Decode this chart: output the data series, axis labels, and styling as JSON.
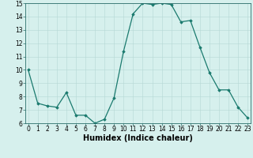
{
  "x": [
    0,
    1,
    2,
    3,
    4,
    5,
    6,
    7,
    8,
    9,
    10,
    11,
    12,
    13,
    14,
    15,
    16,
    17,
    18,
    19,
    20,
    21,
    22,
    23
  ],
  "y": [
    10,
    7.5,
    7.3,
    7.2,
    8.3,
    6.6,
    6.6,
    6.0,
    6.3,
    7.9,
    11.4,
    14.2,
    15.0,
    14.9,
    15.0,
    14.9,
    13.6,
    13.7,
    11.7,
    9.8,
    8.5,
    8.5,
    7.2,
    6.4
  ],
  "xlabel": "Humidex (Indice chaleur)",
  "ylim": [
    6,
    15
  ],
  "xlim": [
    -0.3,
    23.3
  ],
  "yticks": [
    6,
    7,
    8,
    9,
    10,
    11,
    12,
    13,
    14,
    15
  ],
  "xticks": [
    0,
    1,
    2,
    3,
    4,
    5,
    6,
    7,
    8,
    9,
    10,
    11,
    12,
    13,
    14,
    15,
    16,
    17,
    18,
    19,
    20,
    21,
    22,
    23
  ],
  "line_color": "#1a7a6e",
  "marker": "D",
  "marker_size": 1.8,
  "bg_color": "#d6f0ed",
  "grid_color": "#b5d8d4",
  "axis_color": "#2a6e6a",
  "xlabel_fontsize": 7,
  "tick_fontsize": 5.5
}
